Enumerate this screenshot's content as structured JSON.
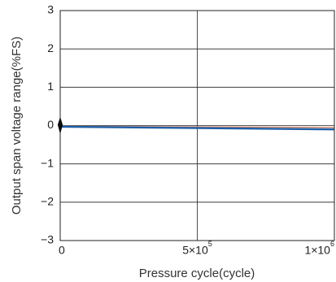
{
  "chart_data": {
    "type": "line",
    "title": "",
    "xlabel": "Pressure cycle(cycle)",
    "ylabel": "Output span voltage range(%FS)",
    "xlim": [
      0,
      1000000
    ],
    "ylim": [
      -3,
      3
    ],
    "grid": true,
    "y_ticks": [
      {
        "value": 3,
        "label": "3"
      },
      {
        "value": 2,
        "label": "2"
      },
      {
        "value": 1,
        "label": "1"
      },
      {
        "value": 0,
        "label": "0"
      },
      {
        "value": -1,
        "label": "−1"
      },
      {
        "value": -2,
        "label": "−2"
      },
      {
        "value": -3,
        "label": "−3"
      }
    ],
    "x_ticks": [
      {
        "value": 0,
        "base": "0",
        "exp": ""
      },
      {
        "value": 500000,
        "base": "5×10",
        "exp": "5"
      },
      {
        "value": 1000000,
        "base": "1×10",
        "exp": "6"
      }
    ],
    "series": [
      {
        "color": "#1f5fa8",
        "x": [
          0,
          1000000
        ],
        "y": [
          -0.03,
          -0.1
        ]
      },
      {
        "color": "#c9826a",
        "x": [
          0,
          1000000
        ],
        "y": [
          -0.02,
          -0.05
        ]
      }
    ],
    "start_marker": {
      "x": 0,
      "y": 0,
      "color": "#000000"
    }
  }
}
